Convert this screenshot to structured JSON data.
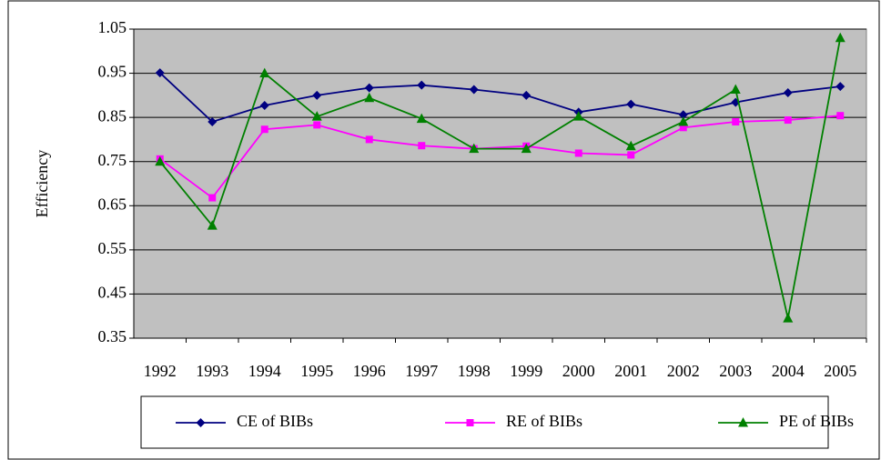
{
  "chart_data": {
    "type": "line",
    "y_label": "Efficiency",
    "categories": [
      "1992",
      "1993",
      "1994",
      "1995",
      "1996",
      "1997",
      "1998",
      "1999",
      "2000",
      "2001",
      "2002",
      "2003",
      "2004",
      "2005"
    ],
    "series": [
      {
        "name": "CE of BIBs",
        "color": "#000080",
        "marker": "diamond",
        "values": [
          0.951,
          0.84,
          0.877,
          0.9,
          0.917,
          0.923,
          0.913,
          0.9,
          0.862,
          0.88,
          0.856,
          0.884,
          0.906,
          0.92
        ]
      },
      {
        "name": "RE of BIBs",
        "color": "#FF00FF",
        "marker": "square",
        "values": [
          0.756,
          0.668,
          0.823,
          0.833,
          0.8,
          0.786,
          0.779,
          0.785,
          0.769,
          0.765,
          0.827,
          0.84,
          0.844,
          0.854
        ]
      },
      {
        "name": "PE of BIBs",
        "color": "#008000",
        "marker": "triangle",
        "values": [
          0.75,
          0.605,
          0.95,
          0.852,
          0.894,
          0.847,
          0.779,
          0.779,
          0.852,
          0.785,
          0.84,
          0.913,
          0.395,
          1.03
        ]
      }
    ],
    "ylim": [
      0.35,
      1.05
    ],
    "yticks": [
      0.35,
      0.45,
      0.55,
      0.65,
      0.75,
      0.85,
      0.95,
      1.05
    ],
    "grid": true,
    "legend": "bottom"
  }
}
